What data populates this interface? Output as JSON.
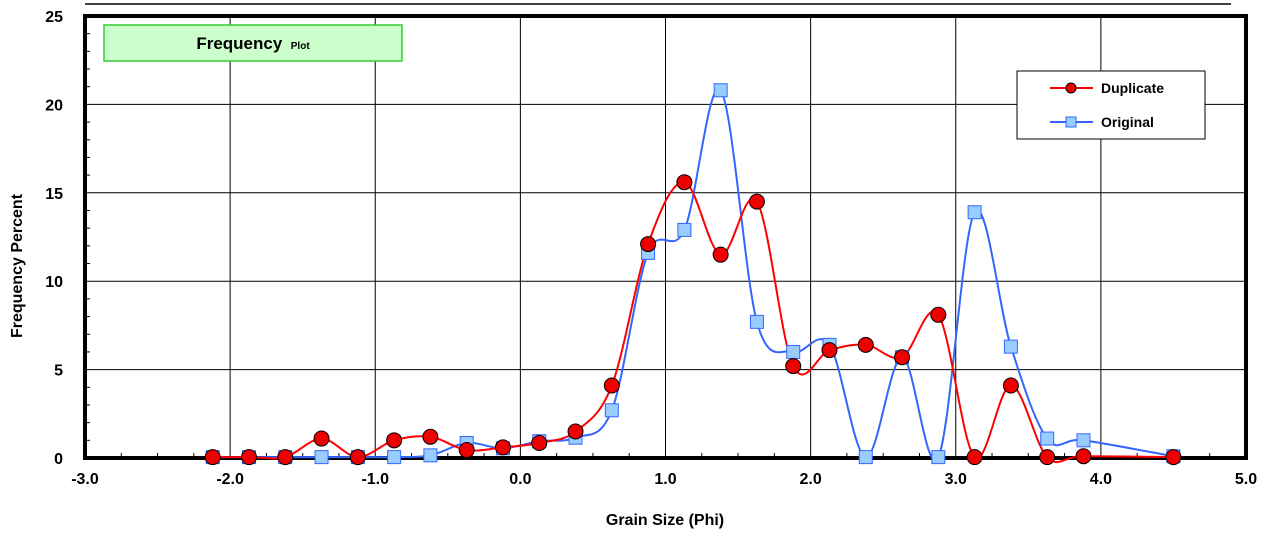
{
  "chart_data": {
    "type": "line",
    "title": "Frequency",
    "title_suffix": "Plot",
    "xlabel": "Grain Size (Phi)",
    "ylabel": "Frequency Percent",
    "xlim": [
      -3.0,
      5.0
    ],
    "ylim": [
      0,
      25
    ],
    "xticks": [
      "-3.0",
      "-2.0",
      "-1.0",
      "0.0",
      "1.0",
      "2.0",
      "3.0",
      "4.0",
      "5.0"
    ],
    "yticks": [
      "0",
      "5",
      "10",
      "15",
      "20",
      "25"
    ],
    "grid": true,
    "legend_position": "top-right",
    "series": [
      {
        "name": "Duplicate",
        "color": "#ff0000",
        "marker": "circle",
        "marker_fill": "#ee0000",
        "x": [
          -2.12,
          -1.87,
          -1.62,
          -1.37,
          -1.12,
          -0.87,
          -0.62,
          -0.37,
          -0.12,
          0.13,
          0.38,
          0.63,
          0.88,
          1.13,
          1.38,
          1.63,
          1.88,
          2.13,
          2.38,
          2.63,
          2.88,
          3.13,
          3.38,
          3.63,
          3.88,
          4.5
        ],
        "y": [
          0.05,
          0.05,
          0.05,
          1.1,
          0.05,
          1.0,
          1.2,
          0.45,
          0.6,
          0.85,
          1.5,
          4.1,
          12.1,
          15.6,
          11.5,
          14.5,
          5.2,
          6.1,
          6.4,
          5.7,
          8.1,
          0.05,
          4.1,
          0.05,
          0.1,
          0.05
        ]
      },
      {
        "name": "Original",
        "color": "#3366ff",
        "marker": "square",
        "marker_fill": "#99ccff",
        "x": [
          -2.12,
          -1.87,
          -1.62,
          -1.37,
          -1.12,
          -0.87,
          -0.62,
          -0.37,
          -0.12,
          0.13,
          0.38,
          0.63,
          0.88,
          1.13,
          1.38,
          1.63,
          1.88,
          2.13,
          2.38,
          2.63,
          2.88,
          3.13,
          3.38,
          3.63,
          3.88,
          4.5
        ],
        "y": [
          0.05,
          0.05,
          0.05,
          0.05,
          0.05,
          0.05,
          0.15,
          0.85,
          0.55,
          0.95,
          1.15,
          2.7,
          11.6,
          12.9,
          20.8,
          7.7,
          6.0,
          6.4,
          0.05,
          5.7,
          0.05,
          13.9,
          6.3,
          1.1,
          1.0,
          0.1
        ]
      }
    ]
  }
}
